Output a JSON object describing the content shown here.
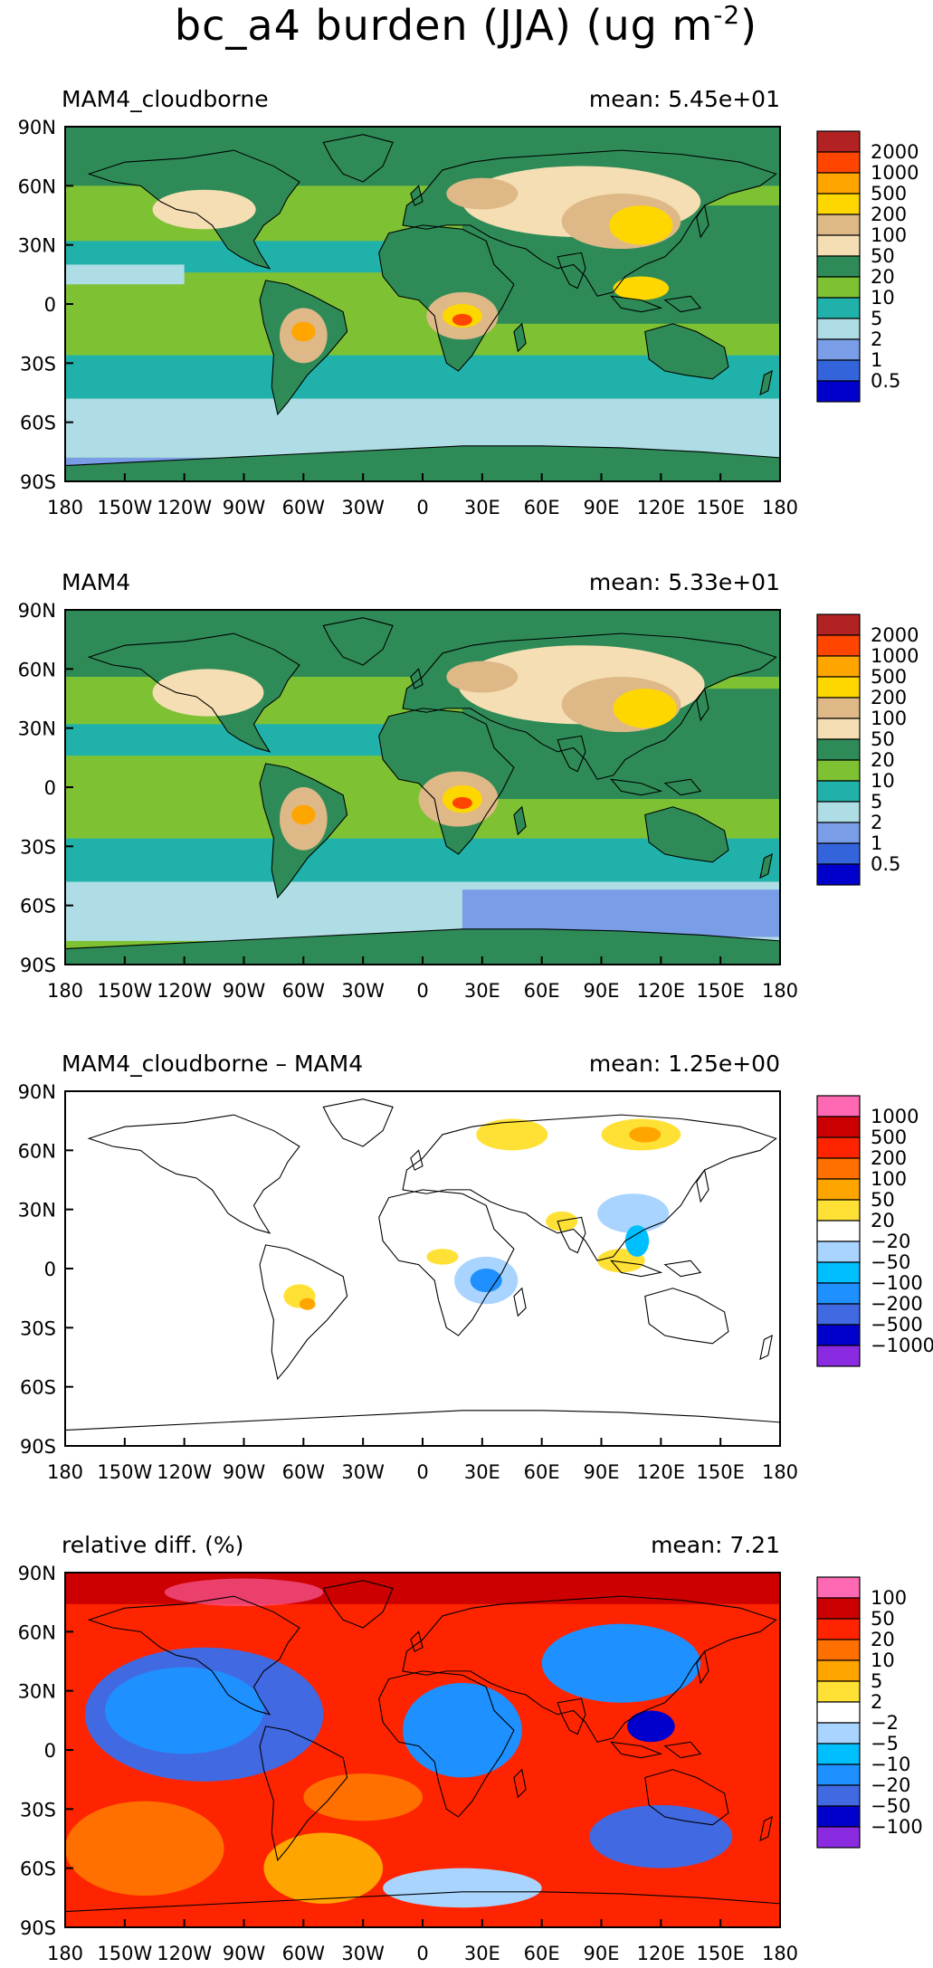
{
  "figure": {
    "title": "bc_a4 burden (JJA) (ug m",
    "title_exponent": "-2",
    "title_close": ")"
  },
  "axes": {
    "lat_labels": [
      "90N",
      "60N",
      "30N",
      "0",
      "30S",
      "60S",
      "90S"
    ],
    "lon_labels": [
      "180",
      "150W",
      "120W",
      "90W",
      "60W",
      "30W",
      "0",
      "30E",
      "60E",
      "90E",
      "120E",
      "150E",
      "180"
    ]
  },
  "panels": [
    {
      "id": "cloudborne",
      "label": "MAM4_cloudborne",
      "mean_text": "mean: 5.45e+01",
      "colorbar": {
        "labels": [
          "2000",
          "1000",
          "500",
          "200",
          "100",
          "50",
          "20",
          "10",
          "5",
          "2",
          "1",
          "0.5"
        ],
        "colors": [
          "#b22222",
          "#ff4500",
          "#ffa500",
          "#ffd700",
          "#deb887",
          "#f5deb3",
          "#2e8b57",
          "#7ec234",
          "#20b2aa",
          "#afdde5",
          "#7a9de8",
          "#3464dc",
          "#0000cd"
        ]
      }
    },
    {
      "id": "mam4",
      "label": "MAM4",
      "mean_text": "mean: 5.33e+01",
      "colorbar": {
        "labels": [
          "2000",
          "1000",
          "500",
          "200",
          "100",
          "50",
          "20",
          "10",
          "5",
          "2",
          "1",
          "0.5"
        ],
        "colors": [
          "#b22222",
          "#ff4500",
          "#ffa500",
          "#ffd700",
          "#deb887",
          "#f5deb3",
          "#2e8b57",
          "#7ec234",
          "#20b2aa",
          "#afdde5",
          "#7a9de8",
          "#3464dc",
          "#0000cd"
        ]
      }
    },
    {
      "id": "diff",
      "label": "MAM4_cloudborne – MAM4",
      "mean_text": "mean: 1.25e+00",
      "colorbar": {
        "labels": [
          "1000",
          "500",
          "200",
          "100",
          "50",
          "20",
          "−20",
          "−50",
          "−100",
          "−200",
          "−500",
          "−1000"
        ],
        "colors": [
          "#ff69b4",
          "#cc0000",
          "#ff2400",
          "#ff7000",
          "#ffa500",
          "#ffe135",
          "#ffffff",
          "#a8d4ff",
          "#00bfff",
          "#1e90ff",
          "#4169e1",
          "#0000cd",
          "#8a2be2"
        ]
      }
    },
    {
      "id": "reldiff",
      "label": "relative diff. (%)",
      "mean_text": "mean:  7.21",
      "colorbar": {
        "labels": [
          "100",
          "50",
          "20",
          "10",
          "5",
          "2",
          "−2",
          "−5",
          "−10",
          "−20",
          "−50",
          "−100"
        ],
        "colors": [
          "#ff69b4",
          "#cc0000",
          "#ff2400",
          "#ff7000",
          "#ffa500",
          "#ffe135",
          "#ffffff",
          "#a8d4ff",
          "#00bfff",
          "#1e90ff",
          "#4169e1",
          "#0000cd",
          "#8a2be2"
        ]
      }
    }
  ],
  "colors": {
    "background": "#ffffff",
    "frame": "#000000",
    "coastline": "#000000"
  }
}
